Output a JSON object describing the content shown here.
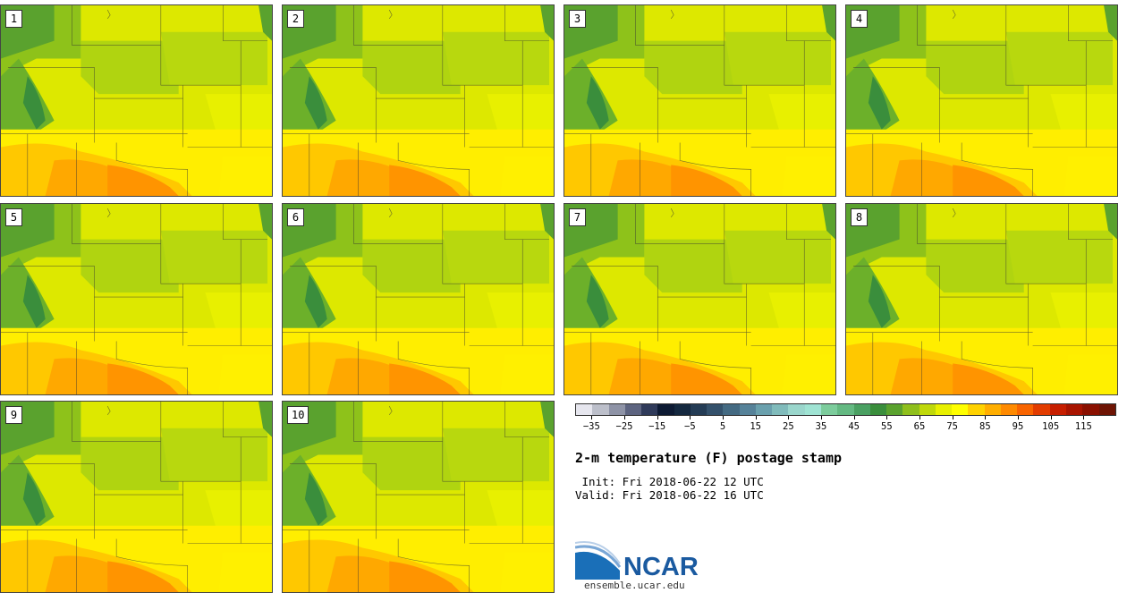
{
  "stamps": [
    {
      "label": "1"
    },
    {
      "label": "2"
    },
    {
      "label": "3"
    },
    {
      "label": "4"
    },
    {
      "label": "5"
    },
    {
      "label": "6"
    },
    {
      "label": "7"
    },
    {
      "label": "8"
    },
    {
      "label": "9"
    },
    {
      "label": "10"
    }
  ],
  "colorbar": {
    "colors": [
      "#e6e6ee",
      "#bcbfca",
      "#8e93a6",
      "#5d6480",
      "#2f3a5a",
      "#0d1a33",
      "#14283f",
      "#243c55",
      "#34516b",
      "#446a82",
      "#568299",
      "#6aa0ad",
      "#80bbbb",
      "#9ad6cc",
      "#9fe3d3",
      "#7ccc9c",
      "#64b982",
      "#4aa062",
      "#3a8e3c",
      "#5aa22e",
      "#8fbf1c",
      "#bfd80a",
      "#e8f000",
      "#ffff00",
      "#ffd200",
      "#ffae00",
      "#ff8a00",
      "#f86400",
      "#e23c00",
      "#c61e00",
      "#a81400",
      "#8a1000",
      "#6e1404"
    ],
    "tick_labels": [
      "−35",
      "−25",
      "−15",
      "−5",
      "5",
      "15",
      "25",
      "35",
      "45",
      "55",
      "65",
      "75",
      "85",
      "95",
      "105",
      "115"
    ]
  },
  "title": "2-m temperature (F) postage stamp",
  "init": " Init: Fri 2018-06-22 12 UTC",
  "valid": "Valid: Fri 2018-06-22 16 UTC",
  "logo": {
    "text": "NCAR",
    "url": "ensemble.ucar.edu"
  }
}
